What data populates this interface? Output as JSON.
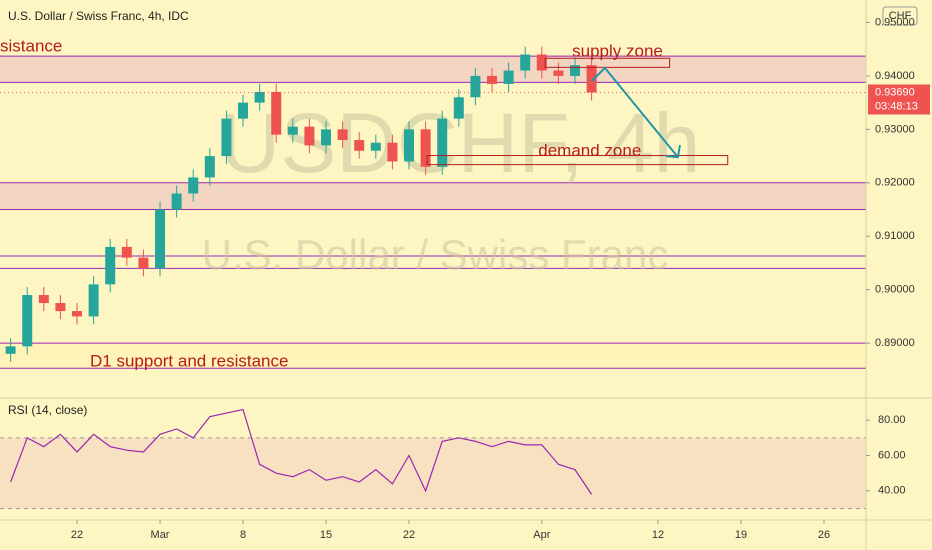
{
  "chart_data": {
    "type": "candlestick",
    "title": "U.S. Dollar / Swiss Franc, 4h, IDC",
    "currency": "CHF",
    "watermark": "USDCHF, 4h",
    "watermark_subtitle": "U.S. Dollar / Swiss Franc",
    "x": [
      -4,
      -3,
      -2,
      -1,
      0,
      1,
      2,
      3,
      4,
      5,
      6,
      7,
      8,
      9,
      10,
      11,
      12,
      13,
      14,
      15,
      16,
      17,
      18,
      19,
      20,
      21,
      22,
      23,
      24,
      25,
      26,
      27,
      28,
      29,
      30,
      31
    ],
    "open": [
      0.888,
      0.8894,
      0.899,
      0.8975,
      0.896,
      0.895,
      0.901,
      0.908,
      0.906,
      0.904,
      0.915,
      0.918,
      0.921,
      0.925,
      0.932,
      0.935,
      0.937,
      0.929,
      0.9305,
      0.927,
      0.93,
      0.928,
      0.926,
      0.9275,
      0.924,
      0.93,
      0.923,
      0.932,
      0.936,
      0.94,
      0.9385,
      0.941,
      0.944,
      0.941,
      0.94,
      0.942
    ],
    "high": [
      0.8909,
      0.9005,
      0.9005,
      0.899,
      0.8975,
      0.9025,
      0.9095,
      0.9095,
      0.9075,
      0.9165,
      0.9195,
      0.9225,
      0.9265,
      0.9335,
      0.9365,
      0.9385,
      0.9385,
      0.932,
      0.932,
      0.9315,
      0.9315,
      0.9295,
      0.929,
      0.929,
      0.9315,
      0.9315,
      0.9335,
      0.9375,
      0.9415,
      0.9415,
      0.9425,
      0.9455,
      0.9455,
      0.9425,
      0.9435,
      0.9435
    ],
    "low": [
      0.8865,
      0.8879,
      0.896,
      0.8945,
      0.8935,
      0.8935,
      0.8995,
      0.9045,
      0.9025,
      0.9025,
      0.9135,
      0.9165,
      0.9195,
      0.9235,
      0.9305,
      0.9335,
      0.9275,
      0.9275,
      0.9255,
      0.9255,
      0.9265,
      0.9245,
      0.9245,
      0.9225,
      0.9225,
      0.9215,
      0.9215,
      0.9305,
      0.9345,
      0.937,
      0.937,
      0.9395,
      0.9395,
      0.9385,
      0.9385,
      0.9354
    ],
    "close": [
      0.8894,
      0.899,
      0.8975,
      0.896,
      0.895,
      0.901,
      0.908,
      0.906,
      0.904,
      0.915,
      0.918,
      0.921,
      0.925,
      0.932,
      0.935,
      0.937,
      0.929,
      0.9305,
      0.927,
      0.93,
      0.928,
      0.926,
      0.9275,
      0.924,
      0.93,
      0.923,
      0.932,
      0.936,
      0.94,
      0.9385,
      0.941,
      0.944,
      0.941,
      0.94,
      0.942,
      0.9369
    ],
    "up_color": "#26a69a",
    "down_color": "#ef5350",
    "xlim": [
      -4.64,
      47.53
    ],
    "xticks": [
      {
        "value": 0,
        "label": "22"
      },
      {
        "value": 5,
        "label": "Mar"
      },
      {
        "value": 10,
        "label": "8"
      },
      {
        "value": 15,
        "label": "15"
      },
      {
        "value": 20,
        "label": "22"
      },
      {
        "value": 28,
        "label": "Apr"
      },
      {
        "value": 35,
        "label": "12"
      },
      {
        "value": 40,
        "label": "19"
      },
      {
        "value": 45,
        "label": "26"
      }
    ],
    "ylim": [
      0.8803,
      0.9542
    ],
    "yticks": [
      {
        "value": 0.95,
        "label": "0.95000"
      },
      {
        "value": 0.94,
        "label": "0.94000"
      },
      {
        "value": 0.93,
        "label": "0.93000"
      },
      {
        "value": 0.92,
        "label": "0.92000"
      },
      {
        "value": 0.91,
        "label": "0.91000"
      },
      {
        "value": 0.9,
        "label": "0.90000"
      },
      {
        "value": 0.89,
        "label": "0.89000"
      }
    ],
    "last_price": {
      "value": 0.9369,
      "label": "0.93690"
    },
    "countdown": "03:48:13",
    "zones": [
      {
        "low": 0.9388,
        "high": 0.9437,
        "color": "#f3d6c2"
      },
      {
        "low": 0.915,
        "high": 0.92,
        "color": "#f3d6c2"
      },
      {
        "low": 0.8853,
        "high": 0.89,
        "color": "#fff3b8"
      }
    ],
    "levels": [
      0.9063,
      0.904
    ],
    "boxes": [
      {
        "text": "supply zone",
        "x": [
          28.2,
          35.7
        ],
        "low": 0.9416,
        "high": 0.9433
      },
      {
        "text": "demand zone",
        "x": [
          21.1,
          39.2
        ],
        "low": 0.9234,
        "high": 0.9251
      }
    ],
    "arrow": [
      [
        31.0,
        0.939
      ],
      [
        31.8,
        0.9415
      ],
      [
        36.2,
        0.9248
      ]
    ],
    "labels": [
      "sistance",
      "D1 support and resistance"
    ],
    "rsi": {
      "title": "RSI (14, close)",
      "values": [
        45,
        70,
        65,
        72,
        62,
        72,
        65,
        63,
        62,
        72,
        75,
        70,
        82,
        84,
        86,
        55,
        50,
        48,
        52,
        46,
        48,
        45,
        52,
        44,
        60,
        40,
        68,
        70,
        68,
        65,
        68,
        66,
        66,
        55,
        52,
        38
      ],
      "color": "#9c27b0",
      "ylim": [
        23.5,
        91.4
      ],
      "yticks": [
        {
          "value": 80,
          "label": "80.00"
        },
        {
          "value": 60,
          "label": "60.00"
        },
        {
          "value": 40,
          "label": "40.00"
        }
      ],
      "band": [
        30,
        70
      ]
    }
  }
}
